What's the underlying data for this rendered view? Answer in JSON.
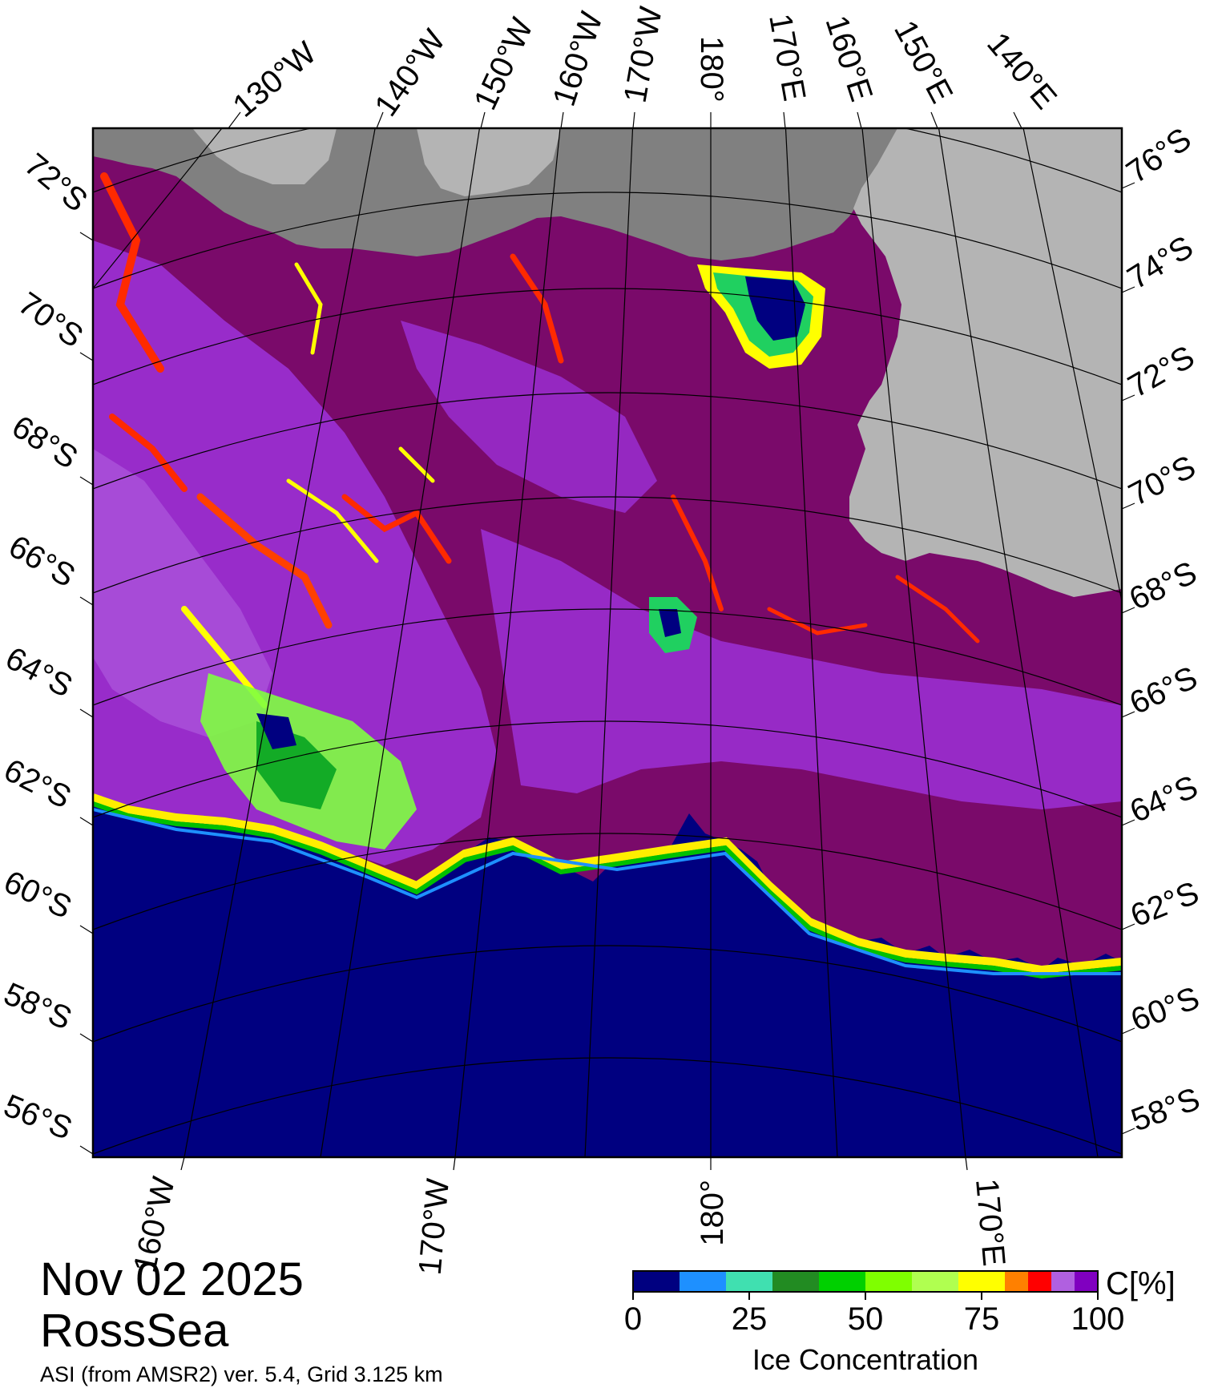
{
  "date": "Nov 02 2025",
  "region": "RossSea",
  "product": "ASI (from AMSR2) ver. 5.4,  Grid 3.125 km",
  "colorbar": {
    "title": "Ice Concentration",
    "unit": "C[%]",
    "tick_labels": [
      "0",
      "25",
      "50",
      "75",
      "100"
    ],
    "colors": [
      "#000080",
      "#1e90ff",
      "#40e0b0",
      "#228b22",
      "#00d000",
      "#7fff00",
      "#b0ff50",
      "#ffff00",
      "#ff8000",
      "#ff0000",
      "#b060e0",
      "#8000c0"
    ]
  },
  "top_longitude_labels": [
    "130°W",
    "140°W",
    "150°W",
    "160°W",
    "170°W",
    "180°",
    "170°E",
    "160°E",
    "150°E",
    "140°E"
  ],
  "bottom_longitude_labels": [
    "160°W",
    "170°W",
    "180°",
    "170°E"
  ],
  "left_latitude_labels": [
    "72°S",
    "70°S",
    "68°S",
    "66°S",
    "64°S",
    "62°S",
    "60°S",
    "58°S",
    "56°S"
  ],
  "right_latitude_labels": [
    "76°S",
    "74°S",
    "72°S",
    "70°S",
    "68°S",
    "66°S",
    "64°S",
    "62°S",
    "60°S",
    "58°S"
  ],
  "map_colors": {
    "open_water": "#000080",
    "land": "#b4b4b4",
    "ice_shelf": "#808080",
    "pack_ice": "#800060",
    "ice_mid": "#9a2ed0",
    "ice_light": "#b060e0"
  }
}
